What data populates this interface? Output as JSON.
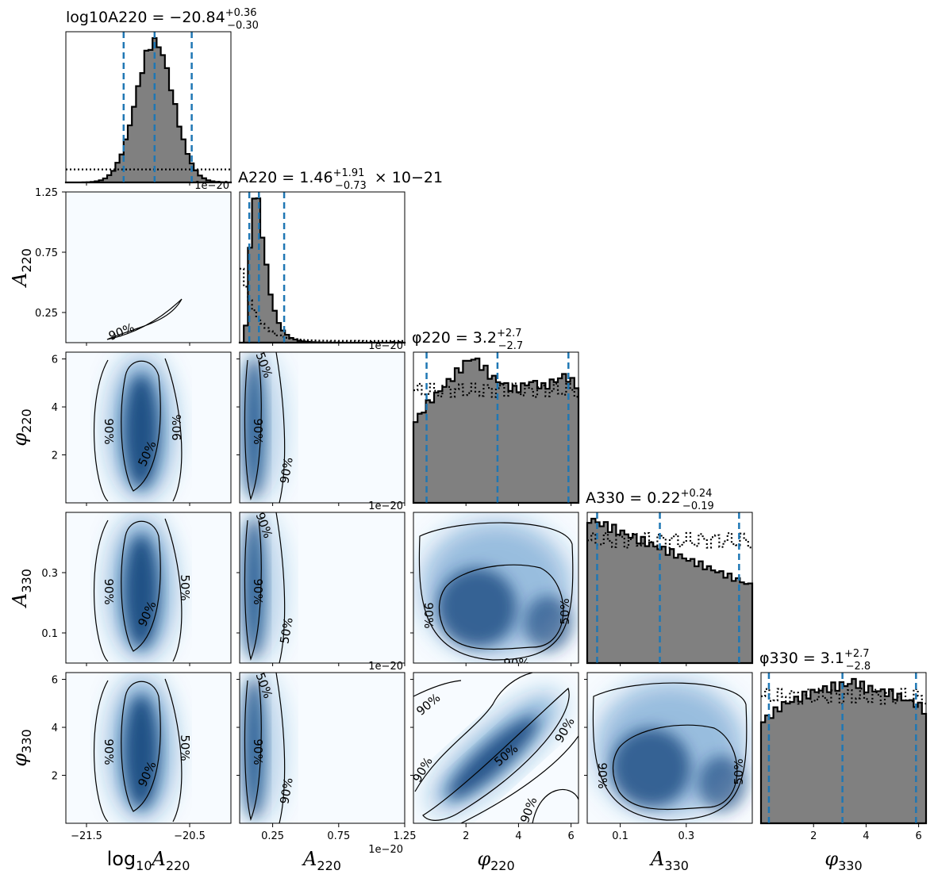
{
  "colors": {
    "hist_fill": "#808080",
    "hist_edge": "#000000",
    "quantile_line": "#1f77b4",
    "density_dark": "#08306b",
    "density_mid": "#2171b5",
    "density_light": "#f7fbff",
    "contour": "#000000"
  },
  "chart_data": {
    "type": "corner",
    "parameters": [
      {
        "key": "logA220",
        "axis_label": "log10A220",
        "axis_label_base": "log",
        "axis_label_base_sub": "10",
        "axis_label_sym": "A",
        "axis_label_sub": "220",
        "range": [
          -21.7,
          -20.1
        ],
        "ticks": [
          -21.5,
          -20.5
        ],
        "tick_labels": [
          "−21.5",
          "−20.5"
        ],
        "title_lhs": "log10A220 =",
        "title_value": "−20.84",
        "title_plus": "+0.36",
        "title_minus": "−0.30",
        "title_suffix": "",
        "median": -20.84,
        "q_low": -21.14,
        "q_high": -20.48,
        "sci_label": "1e−20",
        "hist": {
          "shape": "gauss",
          "mu": -20.84,
          "sigma": 0.18,
          "peak": 1.0
        },
        "prior": {
          "shape": "flat",
          "level": 0.09
        }
      },
      {
        "key": "A220",
        "axis_label": "A220",
        "axis_label_sym": "A",
        "axis_label_sub": "220",
        "range": [
          0.0,
          1.25
        ],
        "ticks": [
          0.25,
          0.75,
          1.25
        ],
        "tick_labels": [
          "0.25",
          "0.75",
          "1.25"
        ],
        "title_lhs": "A220 =",
        "title_value": "1.46",
        "title_plus": "+1.91",
        "title_minus": "−0.73",
        "title_suffix": "× 10−21",
        "median": 0.146,
        "q_low": 0.073,
        "q_high": 0.337,
        "sci_label": "1e−20",
        "hist": {
          "shape": "lognorm",
          "mode": 0.12,
          "sigma": 0.45,
          "peak": 1.0
        },
        "prior": {
          "shape": "decay",
          "level": 0.5
        }
      },
      {
        "key": "phi220",
        "axis_label": "φ220",
        "axis_label_sym": "φ",
        "axis_label_sub": "220",
        "range": [
          0.0,
          6.2832
        ],
        "ticks": [
          2,
          4,
          6
        ],
        "tick_labels": [
          "2",
          "4",
          "6"
        ],
        "title_lhs": "φ220 =",
        "title_value": "3.2",
        "title_plus": "+2.7",
        "title_minus": "−2.7",
        "title_suffix": "",
        "median": 3.2,
        "q_low": 0.5,
        "q_high": 5.9,
        "hist": {
          "shape": "bumpy",
          "levels": [
            0.55,
            0.6,
            0.66,
            0.7,
            0.74,
            0.78,
            0.82,
            0.86,
            0.9,
            0.94,
            0.98,
            0.96,
            0.92,
            0.88,
            0.84,
            0.82,
            0.8,
            0.78,
            0.76,
            0.78,
            0.8,
            0.82,
            0.8,
            0.78,
            0.8,
            0.82,
            0.84,
            0.86,
            0.82,
            0.8
          ],
          "peak": 1.0
        },
        "prior": {
          "shape": "flat",
          "level": 0.78
        }
      },
      {
        "key": "A330",
        "axis_label": "A330",
        "axis_label_sym": "A",
        "axis_label_sub": "330",
        "range": [
          0.0,
          0.5
        ],
        "ticks": [
          0.1,
          0.3
        ],
        "tick_labels": [
          "0.1",
          "0.3"
        ],
        "title_lhs": "A330 =",
        "title_value": "0.22",
        "title_plus": "+0.24",
        "title_minus": "−0.19",
        "title_suffix": "",
        "median": 0.22,
        "q_low": 0.03,
        "q_high": 0.46,
        "hist": {
          "shape": "ramp",
          "start": 0.96,
          "end": 0.52,
          "peak": 1.0
        },
        "prior": {
          "shape": "flat",
          "level": 0.85
        }
      },
      {
        "key": "phi330",
        "axis_label": "φ330",
        "axis_label_sym": "φ",
        "axis_label_sub": "330",
        "range": [
          0.0,
          6.2832
        ],
        "ticks": [
          2,
          4,
          6
        ],
        "tick_labels": [
          "2",
          "4",
          "6"
        ],
        "title_lhs": "φ330 =",
        "title_value": "3.1",
        "title_plus": "+2.7",
        "title_minus": "−2.8",
        "title_suffix": "",
        "median": 3.1,
        "q_low": 0.3,
        "q_high": 5.9,
        "hist": {
          "shape": "bumpy",
          "levels": [
            0.72,
            0.76,
            0.8,
            0.84,
            0.86,
            0.88,
            0.9,
            0.92,
            0.94,
            0.95,
            0.96,
            0.97,
            0.98,
            1.0,
            0.97,
            0.95,
            0.94,
            0.93,
            0.92,
            0.9,
            0.88,
            0.86,
            0.84,
            0.8
          ],
          "peak": 1.0
        },
        "prior": {
          "shape": "flat",
          "level": 0.88
        }
      }
    ],
    "row_ticks": {
      "A220": {
        "ticks": [
          0.25,
          0.75,
          1.25
        ],
        "tick_labels": [
          "0.25",
          "0.75",
          "1.25"
        ]
      },
      "phi220": {
        "ticks": [
          2,
          4,
          6
        ],
        "tick_labels": [
          "2",
          "4",
          "6"
        ]
      },
      "A330": {
        "ticks": [
          0.1,
          0.3
        ],
        "tick_labels": [
          "0.1",
          "0.3"
        ]
      },
      "phi330": {
        "ticks": [
          2,
          4,
          6
        ],
        "tick_labels": [
          "2",
          "4",
          "6"
        ]
      }
    },
    "contour_levels": [
      "50%",
      "90%"
    ],
    "pair_panels": [
      {
        "row": 1,
        "col": 0,
        "kind": "curve",
        "labels": [
          "90%"
        ]
      },
      {
        "row": 2,
        "col": 0,
        "kind": "vertical-blob",
        "labels": [
          "90%",
          "90%",
          "50%"
        ]
      },
      {
        "row": 2,
        "col": 1,
        "kind": "narrow-left",
        "labels": [
          "50%",
          "90%",
          "90%"
        ]
      },
      {
        "row": 3,
        "col": 0,
        "kind": "vertical-blob",
        "labels": [
          "90%",
          "50%",
          "90%"
        ]
      },
      {
        "row": 3,
        "col": 1,
        "kind": "narrow-left",
        "labels": [
          "90%",
          "90%",
          "50%"
        ]
      },
      {
        "row": 3,
        "col": 2,
        "kind": "broad",
        "labels": [
          "90%",
          "50%",
          "90%"
        ]
      },
      {
        "row": 4,
        "col": 0,
        "kind": "vertical-blob",
        "labels": [
          "90%",
          "50%",
          "90%"
        ]
      },
      {
        "row": 4,
        "col": 1,
        "kind": "narrow-left",
        "labels": [
          "50%",
          "90%",
          "90%"
        ]
      },
      {
        "row": 4,
        "col": 2,
        "kind": "diagonal",
        "labels": [
          "90%",
          "90%",
          "50%",
          "90%",
          "90%"
        ]
      },
      {
        "row": 4,
        "col": 3,
        "kind": "broad",
        "labels": [
          "90%",
          "50%"
        ]
      }
    ]
  }
}
